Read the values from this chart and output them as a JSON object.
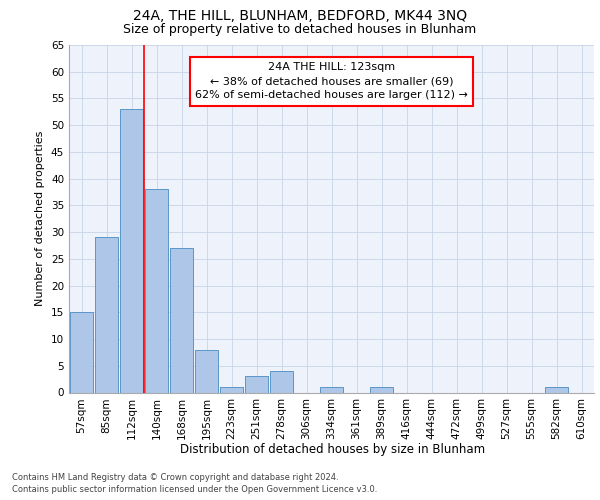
{
  "title1": "24A, THE HILL, BLUNHAM, BEDFORD, MK44 3NQ",
  "title2": "Size of property relative to detached houses in Blunham",
  "xlabel": "Distribution of detached houses by size in Blunham",
  "ylabel": "Number of detached properties",
  "categories": [
    "57sqm",
    "85sqm",
    "112sqm",
    "140sqm",
    "168sqm",
    "195sqm",
    "223sqm",
    "251sqm",
    "278sqm",
    "306sqm",
    "334sqm",
    "361sqm",
    "389sqm",
    "416sqm",
    "444sqm",
    "472sqm",
    "499sqm",
    "527sqm",
    "555sqm",
    "582sqm",
    "610sqm"
  ],
  "values": [
    15,
    29,
    53,
    38,
    27,
    8,
    1,
    3,
    4,
    0,
    1,
    0,
    1,
    0,
    0,
    0,
    0,
    0,
    0,
    1,
    0
  ],
  "bar_color": "#aec6e8",
  "bar_edge_color": "#5a96c8",
  "annotation_text": "24A THE HILL: 123sqm\n← 38% of detached houses are smaller (69)\n62% of semi-detached houses are larger (112) →",
  "annotation_box_color": "white",
  "annotation_box_edge_color": "red",
  "red_line_color": "red",
  "ylim": [
    0,
    65
  ],
  "yticks": [
    0,
    5,
    10,
    15,
    20,
    25,
    30,
    35,
    40,
    45,
    50,
    55,
    60,
    65
  ],
  "footnote1": "Contains HM Land Registry data © Crown copyright and database right 2024.",
  "footnote2": "Contains public sector information licensed under the Open Government Licence v3.0.",
  "bg_color": "#eef2fb",
  "grid_color": "#c8d4e8",
  "title1_fontsize": 10,
  "title2_fontsize": 9,
  "xlabel_fontsize": 8.5,
  "ylabel_fontsize": 8,
  "tick_fontsize": 7.5,
  "annotation_fontsize": 8,
  "footnote_fontsize": 6
}
